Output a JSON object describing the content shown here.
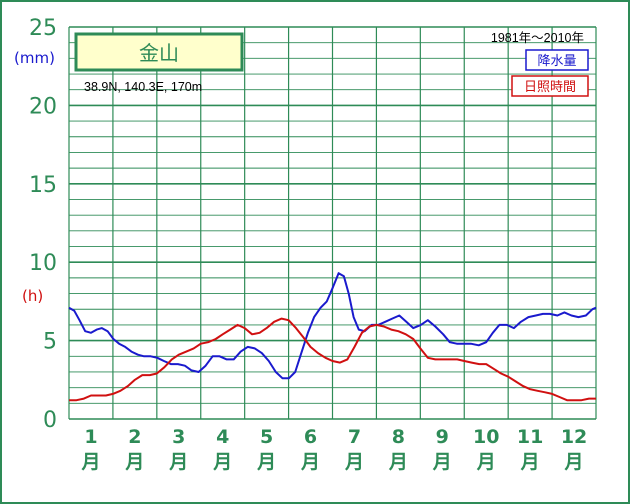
{
  "station": {
    "name": "金山",
    "coordinates": "38.9N,  140.3E,  170m"
  },
  "period": "1981年〜2010年",
  "units": {
    "precipitation": "(mm)",
    "sunshine": "(h)"
  },
  "colors": {
    "grid": "#2e8b57",
    "axis_text": "#2e8b57",
    "precipitation": "#1a1acd",
    "sunshine": "#d01010",
    "title_box_bg": "#ffffcc"
  },
  "chart_data": {
    "type": "line",
    "title": "金山",
    "ylim": [
      0,
      25
    ],
    "y_ticks": [
      "0",
      "5",
      "10",
      "15",
      "20",
      "25"
    ],
    "x_range": [
      0.5,
      12.5
    ],
    "x_ticks": [
      {
        "num": "1",
        "unit": "月"
      },
      {
        "num": "2",
        "unit": "月"
      },
      {
        "num": "3",
        "unit": "月"
      },
      {
        "num": "4",
        "unit": "月"
      },
      {
        "num": "5",
        "unit": "月"
      },
      {
        "num": "6",
        "unit": "月"
      },
      {
        "num": "7",
        "unit": "月"
      },
      {
        "num": "8",
        "unit": "月"
      },
      {
        "num": "9",
        "unit": "月"
      },
      {
        "num": "10",
        "unit": "月"
      },
      {
        "num": "11",
        "unit": "月"
      },
      {
        "num": "12",
        "unit": "月"
      }
    ],
    "grid": true,
    "legend_position": "top-right",
    "series": [
      {
        "name": "降水量",
        "x": [
          0.5,
          0.62,
          0.74,
          0.87,
          1.0,
          1.13,
          1.25,
          1.38,
          1.51,
          1.64,
          1.78,
          1.92,
          2.07,
          2.21,
          2.36,
          2.51,
          2.66,
          2.82,
          2.98,
          3.14,
          3.29,
          3.45,
          3.61,
          3.77,
          3.93,
          4.09,
          4.25,
          4.41,
          4.57,
          4.73,
          4.89,
          5.05,
          5.21,
          5.36,
          5.51,
          5.65,
          5.79,
          5.94,
          6.08,
          6.23,
          6.37,
          6.51,
          6.64,
          6.76,
          6.87,
          6.98,
          7.1,
          7.23,
          7.39,
          7.54,
          7.7,
          7.86,
          8.02,
          8.18,
          8.34,
          8.51,
          8.67,
          8.84,
          9.02,
          9.17,
          9.33,
          9.48,
          9.65,
          9.83,
          10.0,
          10.15,
          10.3,
          10.47,
          10.63,
          10.79,
          10.96,
          11.13,
          11.29,
          11.45,
          11.62,
          11.78,
          11.94,
          12.1,
          12.27,
          12.42,
          12.5
        ],
        "values": [
          7.1,
          6.9,
          6.3,
          5.6,
          5.5,
          5.7,
          5.8,
          5.6,
          5.1,
          4.8,
          4.6,
          4.3,
          4.1,
          4.0,
          4.0,
          3.9,
          3.7,
          3.5,
          3.5,
          3.4,
          3.1,
          3.0,
          3.4,
          4.0,
          4.0,
          3.8,
          3.8,
          4.3,
          4.6,
          4.5,
          4.2,
          3.7,
          3.0,
          2.6,
          2.6,
          3.0,
          4.2,
          5.5,
          6.5,
          7.1,
          7.5,
          8.4,
          9.3,
          9.1,
          8.0,
          6.5,
          5.7,
          5.6,
          6.0,
          6.0,
          6.2,
          6.4,
          6.6,
          6.2,
          5.8,
          6.0,
          6.3,
          5.9,
          5.4,
          4.9,
          4.8,
          4.8,
          4.8,
          4.7,
          4.9,
          5.5,
          6.0,
          6.0,
          5.8,
          6.2,
          6.5,
          6.6,
          6.7,
          6.7,
          6.6,
          6.8,
          6.6,
          6.5,
          6.6,
          7.0,
          7.1
        ]
      },
      {
        "name": "日照時間",
        "x": [
          0.5,
          0.67,
          0.84,
          1.0,
          1.17,
          1.34,
          1.5,
          1.67,
          1.84,
          2.0,
          2.17,
          2.34,
          2.5,
          2.67,
          2.84,
          3.0,
          3.17,
          3.34,
          3.5,
          3.67,
          3.84,
          4.0,
          4.17,
          4.34,
          4.5,
          4.67,
          4.84,
          5.0,
          5.17,
          5.34,
          5.5,
          5.67,
          5.84,
          6.0,
          6.17,
          6.34,
          6.5,
          6.67,
          6.84,
          7.0,
          7.17,
          7.34,
          7.5,
          7.67,
          7.84,
          8.0,
          8.17,
          8.34,
          8.5,
          8.67,
          8.84,
          9.0,
          9.17,
          9.34,
          9.5,
          9.67,
          9.84,
          10.0,
          10.17,
          10.34,
          10.5,
          10.67,
          10.84,
          11.0,
          11.17,
          11.34,
          11.5,
          11.67,
          11.84,
          12.0,
          12.17,
          12.34,
          12.5
        ],
        "values": [
          1.2,
          1.2,
          1.3,
          1.5,
          1.5,
          1.5,
          1.6,
          1.8,
          2.1,
          2.5,
          2.8,
          2.8,
          2.9,
          3.3,
          3.8,
          4.1,
          4.3,
          4.5,
          4.8,
          4.9,
          5.1,
          5.4,
          5.7,
          6.0,
          5.8,
          5.4,
          5.5,
          5.8,
          6.2,
          6.4,
          6.3,
          5.8,
          5.2,
          4.6,
          4.2,
          3.9,
          3.7,
          3.6,
          3.8,
          4.6,
          5.5,
          5.9,
          6.0,
          5.9,
          5.7,
          5.6,
          5.4,
          5.1,
          4.5,
          3.9,
          3.8,
          3.8,
          3.8,
          3.8,
          3.7,
          3.6,
          3.5,
          3.5,
          3.2,
          2.9,
          2.7,
          2.4,
          2.1,
          1.9,
          1.8,
          1.7,
          1.6,
          1.4,
          1.2,
          1.2,
          1.2,
          1.3,
          1.3
        ]
      }
    ]
  }
}
